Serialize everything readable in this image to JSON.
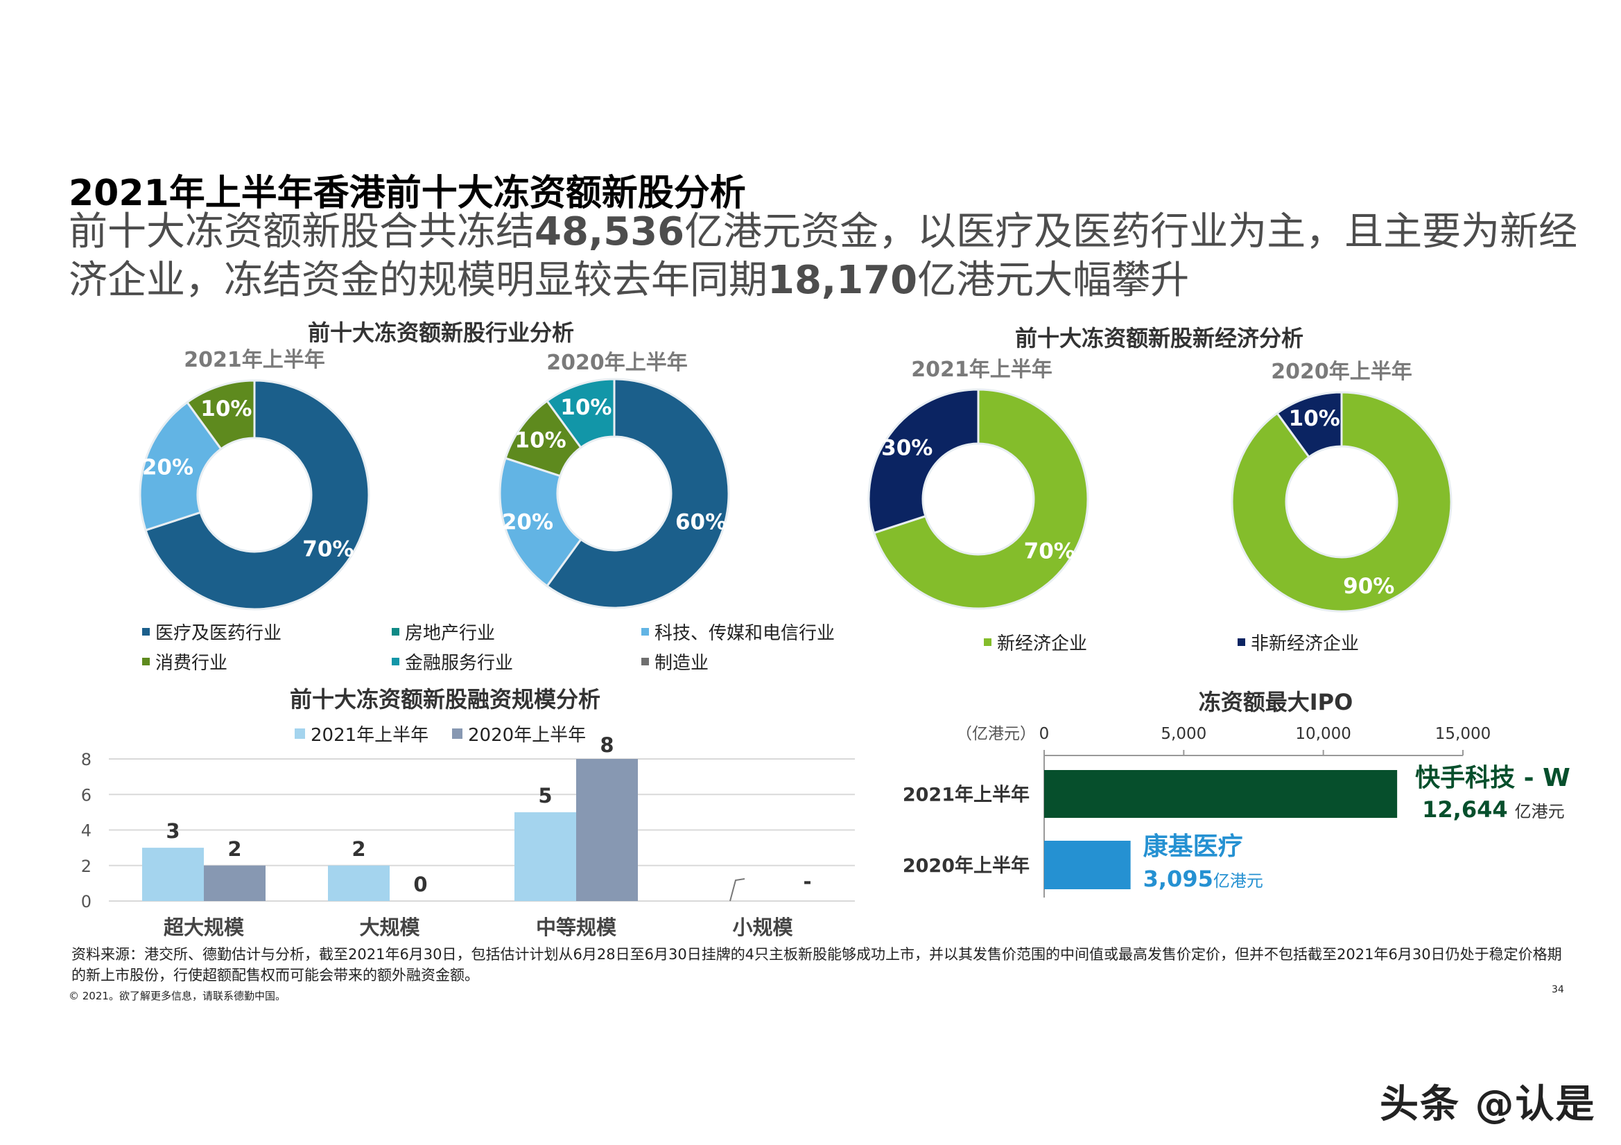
{
  "header": {
    "title": "2021年上半年香港前十大冻资额新股分析",
    "subtitle_parts": [
      "前十大冻资额新股合共冻结",
      "48,536",
      "亿港元资金，以医疗及医药行业为主，且主要为新经济企业，冻结资金的规模明显较去年同期",
      "18,170",
      "亿港元大幅攀升"
    ]
  },
  "colors": {
    "medical": "#1b5f8b",
    "real_estate": "#0f8a86",
    "tech": "#62b4e4",
    "consumer": "#5e8a1e",
    "finance": "#1296a8",
    "manufacturing": "#6f6f6f",
    "new_economy": "#84bd2b",
    "non_new_economy": "#0b2462",
    "bar_2021": "#a4d4ee",
    "bar_2020": "#8798b2",
    "ipo_2021": "#064f2c",
    "ipo_2020": "#2591d2"
  },
  "chart_data": [
    {
      "type": "pie",
      "title": "前十大冻资额新股行业分析",
      "subtitle": "2021年上半年",
      "slices": [
        {
          "name": "医疗及医药行业",
          "value": 70,
          "label": "70%",
          "color": "#1b5f8b"
        },
        {
          "name": "科技、传媒和电信行业",
          "value": 20,
          "label": "20%",
          "color": "#62b4e4"
        },
        {
          "name": "消费行业",
          "value": 10,
          "label": "10%",
          "color": "#5e8a1e"
        }
      ]
    },
    {
      "type": "pie",
      "title": "前十大冻资额新股行业分析",
      "subtitle": "2020年上半年",
      "slices": [
        {
          "name": "医疗及医药行业",
          "value": 60,
          "label": "60%",
          "color": "#1b5f8b"
        },
        {
          "name": "科技、传媒和电信行业",
          "value": 20,
          "label": "20%",
          "color": "#62b4e4"
        },
        {
          "name": "消费行业",
          "value": 10,
          "label": "10%",
          "color": "#5e8a1e"
        },
        {
          "name": "金融服务行业",
          "value": 10,
          "label": "10%",
          "color": "#1296a8"
        }
      ],
      "legend": [
        "医疗及医药行业",
        "房地产行业",
        "科技、传媒和电信行业",
        "消费行业",
        "金融服务行业",
        "制造业"
      ]
    },
    {
      "type": "pie",
      "title": "前十大冻资额新股新经济分析",
      "subtitle": "2021年上半年",
      "slices": [
        {
          "name": "新经济企业",
          "value": 70,
          "label": "70%",
          "color": "#84bd2b"
        },
        {
          "name": "非新经济企业",
          "value": 30,
          "label": "30%",
          "color": "#0b2462"
        }
      ]
    },
    {
      "type": "pie",
      "title": "前十大冻资额新股新经济分析",
      "subtitle": "2020年上半年",
      "slices": [
        {
          "name": "新经济企业",
          "value": 90,
          "label": "90%",
          "color": "#84bd2b"
        },
        {
          "name": "非新经济企业",
          "value": 10,
          "label": "10%",
          "color": "#0b2462"
        }
      ],
      "legend": [
        "新经济企业",
        "非新经济企业"
      ]
    },
    {
      "type": "bar",
      "title": "前十大冻资额新股融资规模分析",
      "categories": [
        "超大规模",
        "大规模",
        "中等规模",
        "小规模"
      ],
      "series": [
        {
          "name": "2021年上半年",
          "values": [
            3,
            2,
            5,
            null
          ],
          "labels": [
            "3",
            "2",
            "5",
            ""
          ],
          "color": "#a4d4ee"
        },
        {
          "name": "2020年上半年",
          "values": [
            2,
            0,
            8,
            null
          ],
          "labels": [
            "2",
            "0",
            "8",
            "-"
          ],
          "color": "#8798b2"
        }
      ],
      "yticks": [
        "0",
        "2",
        "4",
        "6",
        "8"
      ],
      "ylim": [
        0,
        8
      ],
      "grid": true,
      "legend": "top"
    },
    {
      "type": "bar",
      "orientation": "horizontal",
      "title": "冻资额最大IPO",
      "unit_label": "（亿港元）",
      "categories": [
        "2021年上半年",
        "2020年上半年"
      ],
      "values": [
        12644,
        3095
      ],
      "xticks": [
        "0",
        "5,000",
        "10,000",
        "15,000"
      ],
      "xlim": [
        0,
        15000
      ],
      "annotations": [
        {
          "name": "快手科技 - W",
          "value": "12,644",
          "unit": "亿港元",
          "color": "#064f2c"
        },
        {
          "name": "康基医疗",
          "value": "3,095",
          "unit": "亿港元",
          "color": "#2591d2"
        }
      ]
    }
  ],
  "footer": {
    "source": "资料来源：港交所、德勤估计与分析，截至2021年6月30日，包括估计计划从6月28日至6月30日挂牌的4只主板新股能够成功上市，并以其发售价范围的中间值或最高发售价定价，但并不包括截至2021年6月30日仍处于稳定价格期的新上市股份，行使超额配售权而可能会带来的额外融资金额。",
    "copyright": "© 2021。欲了解更多信息，请联系德勤中国。",
    "page": "34",
    "watermark": "头条 @认是"
  }
}
